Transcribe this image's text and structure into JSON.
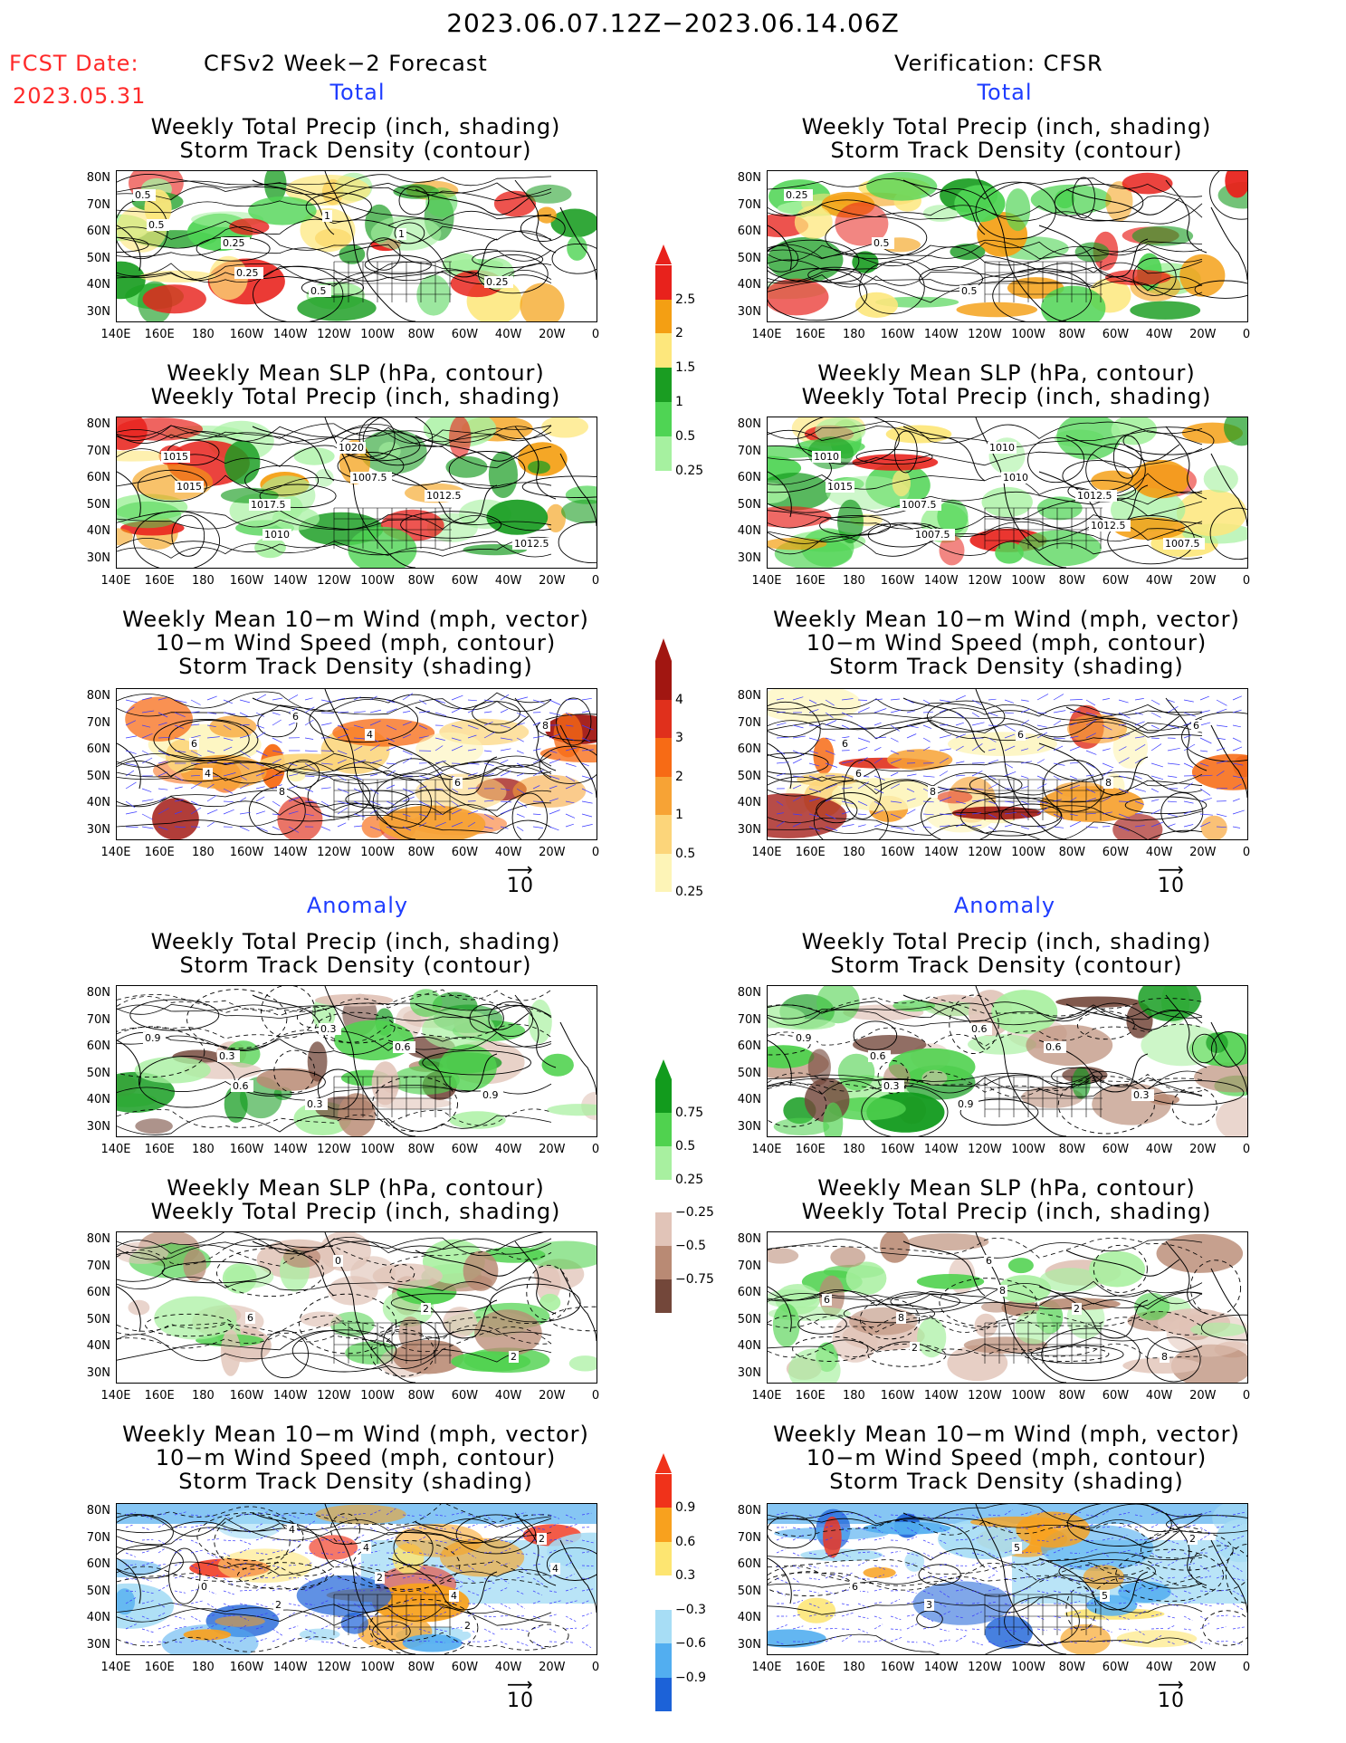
{
  "header": {
    "title": "2023.06.07.12Z−2023.06.14.06Z",
    "fcst_label": "FCST Date:",
    "fcst_date": "2023.05.31",
    "left_heading": "CFSv2 Week−2 Forecast",
    "right_heading": "Verification: CFSR"
  },
  "sections": {
    "total": "Total",
    "anomaly": "Anomaly"
  },
  "titles": {
    "precip": [
      "Weekly Total Precip (inch, shading)",
      "Storm Track Density (contour)"
    ],
    "slp": [
      "Weekly Mean SLP (hPa, contour)",
      "Weekly Total Precip (inch, shading)"
    ],
    "wind": [
      "Weekly Mean 10−m Wind (mph, vector)",
      "10−m Wind Speed (mph, contour)",
      "Storm Track Density (shading)"
    ]
  },
  "axes": {
    "lat": [
      "80N",
      "70N",
      "60N",
      "50N",
      "40N",
      "30N"
    ],
    "lon": [
      "140E",
      "160E",
      "180",
      "160W",
      "140W",
      "120W",
      "100W",
      "80W",
      "60W",
      "40W",
      "20W",
      "0"
    ]
  },
  "vector_ref": "10",
  "colorbars": {
    "precip_total": {
      "labels": [
        "2.5",
        "2",
        "1.5",
        "1",
        "0.5",
        "0.25"
      ],
      "colors": [
        "#e8221c",
        "#f49f13",
        "#fde77c",
        "#1a9d22",
        "#4fd454",
        "#a6f1a0"
      ]
    },
    "wind_total": {
      "labels": [
        "4",
        "3",
        "2",
        "1",
        "0.5",
        "0.25"
      ],
      "colors": [
        "#a11611",
        "#e0301c",
        "#f76b15",
        "#f7a335",
        "#fcd57a",
        "#fdf4b7"
      ]
    },
    "precip_anom": {
      "labels": [
        "0.75",
        "0.5",
        "0.25",
        "−0.25",
        "−0.5",
        "−0.75"
      ],
      "colors": [
        "#129b1d",
        "#50d24f",
        "#a8f0a0",
        "#ffffff",
        "#e1c4b8",
        "#b98a74",
        "#73473a"
      ]
    },
    "wind_anom": {
      "labels": [
        "0.9",
        "0.6",
        "0.3",
        "−0.3",
        "−0.6",
        "−0.9"
      ],
      "colors": [
        "#f0321a",
        "#f8a11e",
        "#fde571",
        "#ffffff",
        "#a7ddf5",
        "#52aef0",
        "#1c62d8"
      ]
    }
  },
  "contour_labels": {
    "p1": [
      "0.5",
      "0.25",
      "0.5",
      "1",
      "0.25",
      "0.5",
      "0.25",
      "1"
    ],
    "p2": [
      "0.25",
      "0.5",
      "0.5"
    ],
    "s1": [
      "1015",
      "1017.5",
      "1020",
      "1012.5",
      "1012.5",
      "1015",
      "1010",
      "1007.5"
    ],
    "s2": [
      "1010",
      "1007.5",
      "1010",
      "1012.5",
      "1007.5",
      "1015",
      "1007.5",
      "1010",
      "1012.5"
    ],
    "w1": [
      "6",
      "8",
      "4",
      "6",
      "8",
      "4",
      "6"
    ],
    "w2": [
      "6",
      "8",
      "6",
      "8",
      "6",
      "6"
    ],
    "a1": [
      "0.3",
      "0.3",
      "0.6",
      "0.9",
      "0.9",
      "0.6",
      "0.3"
    ],
    "a2": [
      "0.6",
      "0.9",
      "0.6",
      "0.3",
      "0.9",
      "0.3",
      "0.6"
    ],
    "b1": [
      "6",
      "0",
      "2",
      "2"
    ],
    "b2": [
      "8",
      "6",
      "2",
      "8",
      "6",
      "2",
      "8"
    ],
    "c1": [
      "2",
      "4",
      "4",
      "2",
      "0",
      "4",
      "2",
      "2",
      "4"
    ],
    "c2": [
      "3",
      "5",
      "5",
      "2",
      "6"
    ]
  }
}
